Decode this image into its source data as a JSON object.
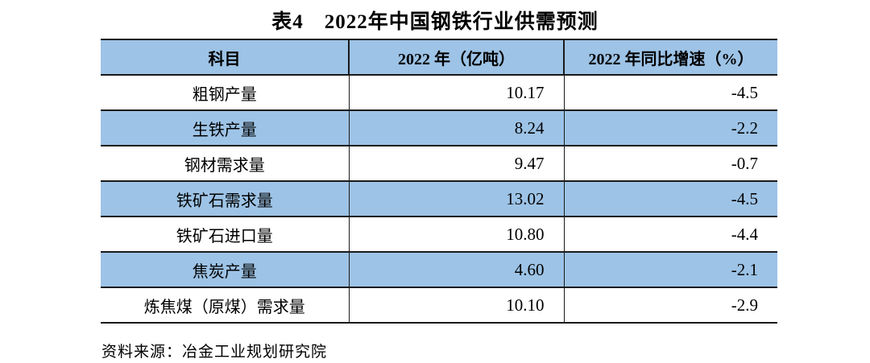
{
  "title": "表4　2022年中国钢铁行业供需预测",
  "table": {
    "headers": [
      "科目",
      "2022 年（亿吨）",
      "2022 年同比增速（%）"
    ],
    "rows": [
      {
        "item": "粗钢产量",
        "value": "10.17",
        "growth": "-4.5"
      },
      {
        "item": "生铁产量",
        "value": "8.24",
        "growth": "-2.2"
      },
      {
        "item": "钢材需求量",
        "value": "9.47",
        "growth": "-0.7"
      },
      {
        "item": "铁矿石需求量",
        "value": "13.02",
        "growth": "-4.5"
      },
      {
        "item": "铁矿石进口量",
        "value": "10.80",
        "growth": "-4.4"
      },
      {
        "item": "焦炭产量",
        "value": "4.60",
        "growth": "-2.1"
      },
      {
        "item": "炼焦煤（原煤）需求量",
        "value": "10.10",
        "growth": "-2.9"
      }
    ]
  },
  "source_note": "资料来源：冶金工业规划研究院",
  "chart_data": {
    "type": "table",
    "title": "表4　2022年中国钢铁行业供需预测",
    "categories": [
      "粗钢产量",
      "生铁产量",
      "钢材需求量",
      "铁矿石需求量",
      "铁矿石进口量",
      "焦炭产量",
      "炼焦煤（原煤）需求量"
    ],
    "series": [
      {
        "name": "2022 年（亿吨）",
        "values": [
          10.17,
          8.24,
          9.47,
          13.02,
          10.8,
          4.6,
          10.1
        ]
      },
      {
        "name": "2022 年同比增速（%）",
        "values": [
          -4.5,
          -2.2,
          -0.7,
          -4.5,
          -4.4,
          -2.1,
          -2.9
        ]
      }
    ]
  },
  "colors": {
    "header_bg": "#9DC3E6",
    "stripe_bg": "#9DC3E6",
    "border": "#1a1a1a",
    "text": "#000000",
    "page_bg": "#ffffff"
  }
}
